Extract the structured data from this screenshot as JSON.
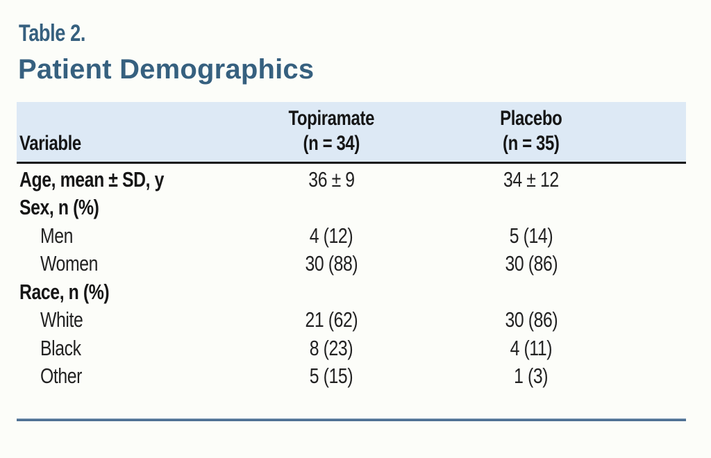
{
  "page": {
    "background": "#fcfdf9"
  },
  "header": {
    "eyebrow": "Table 2.",
    "title": "Patient Demographics",
    "accent_color": "#36607f"
  },
  "table": {
    "band_color": "#dde9f5",
    "head_rule_color": "#121212",
    "bottom_rule_color": "#4f7194",
    "columns": {
      "variable": {
        "label": "Variable"
      },
      "topiramate": {
        "label": "Topiramate",
        "sublabel": "(n = 34)"
      },
      "placebo": {
        "label": "Placebo",
        "sublabel": "(n = 35)"
      }
    },
    "rows": [
      {
        "label": "Age, mean ± SD, y",
        "bold": true,
        "indent": false,
        "topiramate": "36 ± 9",
        "placebo": "34 ± 12"
      },
      {
        "label": "Sex, n (%)",
        "bold": true,
        "indent": false,
        "topiramate": "",
        "placebo": ""
      },
      {
        "label": "Men",
        "bold": false,
        "indent": true,
        "topiramate": "4 (12)",
        "placebo": "5 (14)"
      },
      {
        "label": "Women",
        "bold": false,
        "indent": true,
        "topiramate": "30 (88)",
        "placebo": "30 (86)"
      },
      {
        "label": "Race, n (%)",
        "bold": true,
        "indent": false,
        "topiramate": "",
        "placebo": ""
      },
      {
        "label": "White",
        "bold": false,
        "indent": true,
        "topiramate": "21 (62)",
        "placebo": "30 (86)"
      },
      {
        "label": "Black",
        "bold": false,
        "indent": true,
        "topiramate": "8 (23)",
        "placebo": "4 (11)"
      },
      {
        "label": "Other",
        "bold": false,
        "indent": true,
        "topiramate": "5 (15)",
        "placebo": "1 (3)"
      }
    ]
  }
}
